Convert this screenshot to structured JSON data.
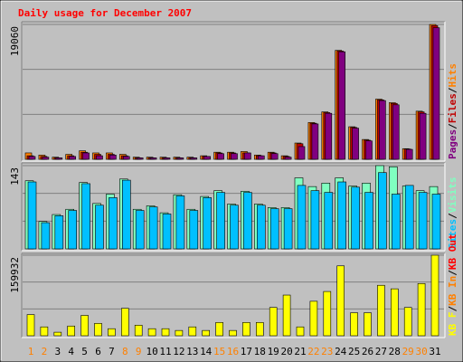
{
  "chart_data": [
    {
      "type": "bar",
      "title": "Daily usage for December 2007",
      "title_color": "#ff0000",
      "legend_separator": "/",
      "ylim": [
        0,
        19060
      ],
      "yticks": [
        19060
      ],
      "series": [
        {
          "name": "Hits",
          "color": "#ff8000",
          "values": [
            900,
            600,
            300,
            700,
            1200,
            900,
            900,
            700,
            300,
            300,
            300,
            300,
            300,
            500,
            1000,
            1000,
            1100,
            600,
            1000,
            500,
            2300,
            5200,
            6700,
            15400,
            4600,
            2800,
            8500,
            8000,
            1500,
            6800,
            19060
          ]
        },
        {
          "name": "Files",
          "color": "#c00000",
          "values": [
            500,
            400,
            200,
            500,
            1000,
            700,
            700,
            500,
            200,
            200,
            200,
            200,
            200,
            400,
            900,
            900,
            900,
            500,
            900,
            400,
            2200,
            5100,
            6600,
            15300,
            4500,
            2700,
            8400,
            7900,
            1450,
            6700,
            18900
          ]
        },
        {
          "name": "Pages",
          "color": "#800080",
          "values": [
            400,
            300,
            200,
            400,
            900,
            500,
            600,
            400,
            200,
            200,
            200,
            200,
            200,
            400,
            800,
            800,
            900,
            500,
            800,
            300,
            1800,
            5000,
            6500,
            15200,
            4400,
            2600,
            8300,
            7700,
            1400,
            6500,
            18600
          ]
        }
      ]
    },
    {
      "type": "bar",
      "ylim": [
        0,
        143
      ],
      "yticks": [
        143
      ],
      "series": [
        {
          "name": "Visits",
          "color": "#80ffc0",
          "values": [
            117,
            47,
            59,
            68,
            114,
            78,
            94,
            120,
            68,
            74,
            62,
            93,
            68,
            90,
            100,
            77,
            99,
            77,
            71,
            71,
            122,
            107,
            113,
            122,
            108,
            113,
            143,
            141,
            108,
            100,
            107
          ]
        },
        {
          "name": "Sites",
          "color": "#00c0ff",
          "values": [
            115,
            45,
            57,
            66,
            112,
            75,
            88,
            118,
            66,
            72,
            60,
            91,
            66,
            88,
            97,
            75,
            97,
            75,
            69,
            69,
            109,
            100,
            97,
            115,
            106,
            97,
            131,
            94,
            109,
            97,
            94
          ]
        }
      ]
    },
    {
      "type": "bar",
      "ylim": [
        0,
        159932
      ],
      "yticks": [
        159932
      ],
      "categories": [
        "1",
        "2",
        "3",
        "4",
        "5",
        "6",
        "7",
        "8",
        "9",
        "10",
        "11",
        "12",
        "13",
        "14",
        "15",
        "16",
        "17",
        "18",
        "19",
        "20",
        "21",
        "22",
        "23",
        "24",
        "25",
        "26",
        "27",
        "28",
        "29",
        "30",
        "31"
      ],
      "category_colors": [
        "#ff8000",
        "#ff8000",
        "#000000",
        "#000000",
        "#000000",
        "#000000",
        "#000000",
        "#ff8000",
        "#ff8000",
        "#000000",
        "#000000",
        "#000000",
        "#000000",
        "#000000",
        "#ff8000",
        "#ff8000",
        "#000000",
        "#000000",
        "#000000",
        "#000000",
        "#000000",
        "#ff8000",
        "#ff8000",
        "#000000",
        "#000000",
        "#000000",
        "#000000",
        "#000000",
        "#ff8000",
        "#ff8000",
        "#000000"
      ],
      "series": [
        {
          "name": "KB F",
          "color": "#ffff00",
          "values": [
            42000,
            17600,
            7000,
            19300,
            40400,
            24600,
            14000,
            54500,
            21000,
            14000,
            14000,
            10500,
            17600,
            10500,
            26400,
            10500,
            26400,
            26400,
            56200,
            80800,
            17600,
            68500,
            87900,
            138800,
            45700,
            45700,
            100200,
            93200,
            56200,
            103700,
            159932
          ]
        }
      ],
      "legend_only": [
        {
          "name": "KB In",
          "color": "#ff8000"
        },
        {
          "name": "KB Out",
          "color": "#ff0000"
        }
      ]
    }
  ]
}
